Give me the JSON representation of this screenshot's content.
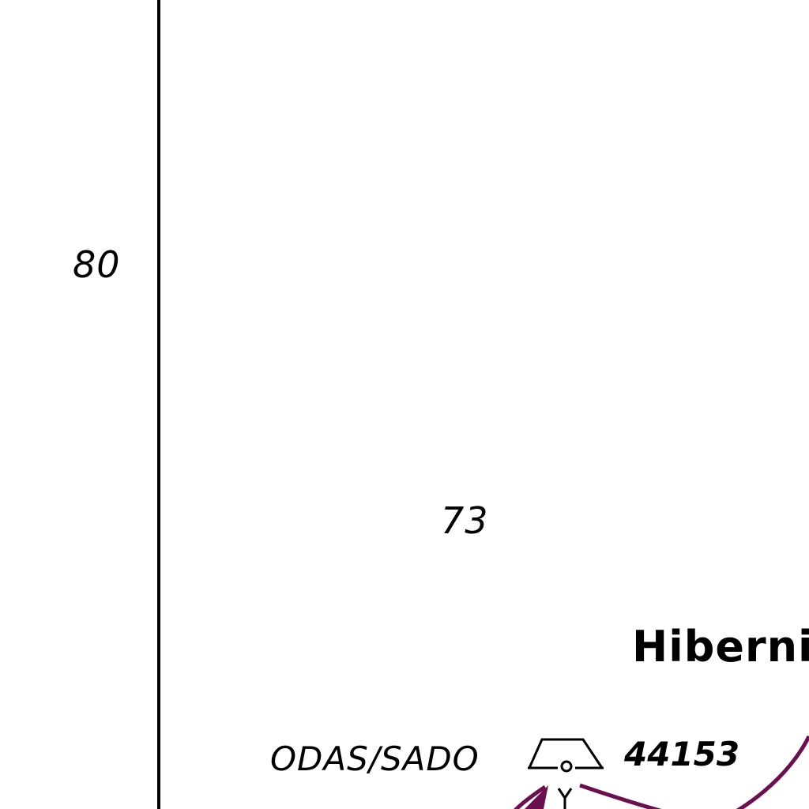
{
  "map": {
    "labels": {
      "sounding_80": "80",
      "sounding_73": "73",
      "platform_name": "Hibernia",
      "buoy_type": "ODAS/SADO",
      "buoy_id": "44153"
    },
    "icons": {
      "buoy": "buoy-icon",
      "traffic_route": "route-arc-icon"
    },
    "colors": {
      "ink": "#000000",
      "route_magenta": "#6b0f4f",
      "background": "#ffffff"
    }
  }
}
